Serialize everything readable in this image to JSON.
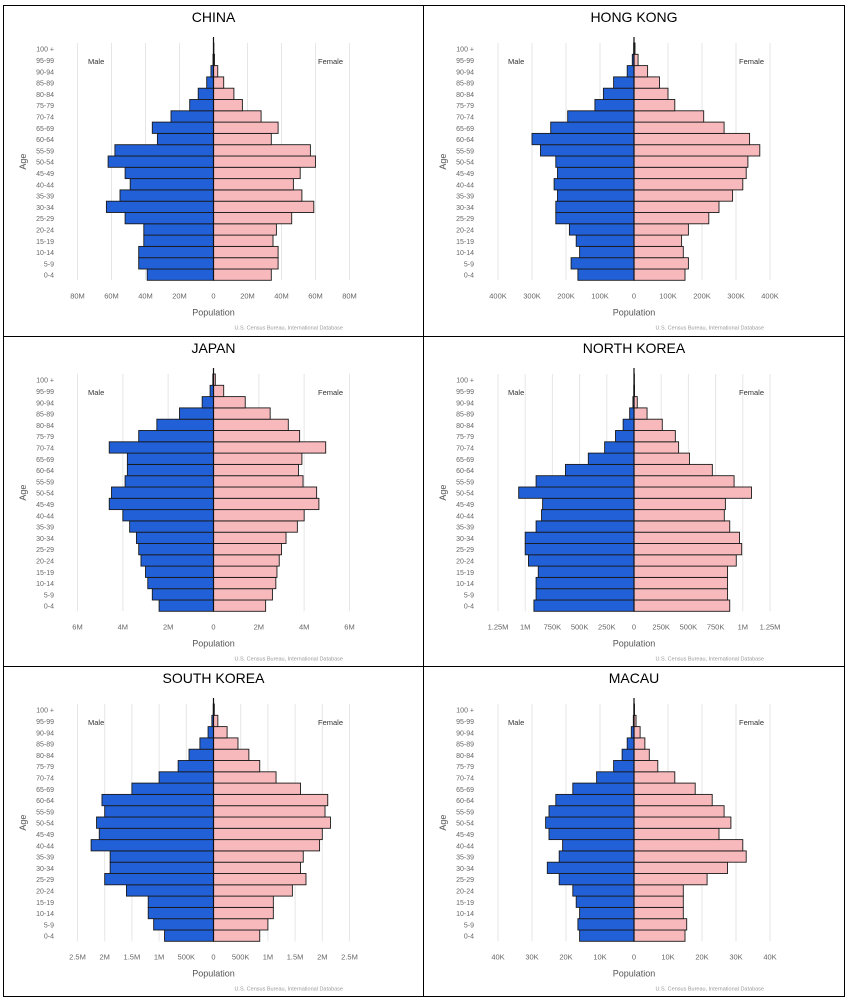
{
  "figure": {
    "sex_labels": {
      "male": "Male",
      "female": "Female"
    },
    "y_axis_label": "Age",
    "x_axis_label": "Population",
    "source": "U.S. Census Bureau, International Database",
    "age_groups": [
      "0-4",
      "5-9",
      "10-14",
      "15-19",
      "20-24",
      "25-29",
      "30-34",
      "35-39",
      "40-44",
      "45-49",
      "50-54",
      "55-59",
      "60-64",
      "65-69",
      "70-74",
      "75-79",
      "80-84",
      "85-89",
      "90-94",
      "95-99",
      "100 +"
    ]
  },
  "colors": {
    "male": "#2160d6",
    "female": "#f7b9bc",
    "outline": "#1a1a1a",
    "grid": "#e6e6e6"
  },
  "chart_data": [
    {
      "type": "bar",
      "title": "CHINA",
      "xlim": [
        -80,
        80
      ],
      "xticks": [
        -80,
        -60,
        -40,
        -20,
        0,
        20,
        40,
        60,
        80
      ],
      "xtick_labels": [
        "80M",
        "60M",
        "40M",
        "20M",
        "0",
        "20M",
        "40M",
        "60M",
        "80M"
      ],
      "categories": [
        "0-4",
        "5-9",
        "10-14",
        "15-19",
        "20-24",
        "25-29",
        "30-34",
        "35-39",
        "40-44",
        "45-49",
        "50-54",
        "55-59",
        "60-64",
        "65-69",
        "70-74",
        "75-79",
        "80-84",
        "85-89",
        "90-94",
        "95-99",
        "100 +"
      ],
      "series": [
        {
          "name": "Male",
          "values": [
            39,
            44,
            44,
            41,
            41,
            52,
            63,
            55,
            49,
            52,
            62,
            58,
            33,
            36,
            25,
            14,
            9,
            4,
            1.5,
            0.3,
            0.05
          ]
        },
        {
          "name": "Female",
          "values": [
            34,
            38,
            38,
            35,
            37,
            46,
            59,
            52,
            47,
            51,
            60,
            57,
            34,
            38,
            28,
            17,
            12,
            6,
            2.5,
            0.6,
            0.1
          ]
        }
      ]
    },
    {
      "type": "bar",
      "title": "HONG KONG",
      "xlim": [
        -400,
        400
      ],
      "xticks": [
        -400,
        -300,
        -200,
        -100,
        0,
        100,
        200,
        300,
        400
      ],
      "xtick_labels": [
        "400K",
        "300K",
        "200K",
        "100K",
        "0",
        "100K",
        "200K",
        "300K",
        "400K"
      ],
      "categories": [
        "0-4",
        "5-9",
        "10-14",
        "15-19",
        "20-24",
        "25-29",
        "30-34",
        "35-39",
        "40-44",
        "45-49",
        "50-54",
        "55-59",
        "60-64",
        "65-69",
        "70-74",
        "75-79",
        "80-84",
        "85-89",
        "90-94",
        "95-99",
        "100 +"
      ],
      "series": [
        {
          "name": "Male",
          "values": [
            165,
            185,
            160,
            170,
            190,
            230,
            230,
            225,
            235,
            225,
            230,
            275,
            300,
            245,
            195,
            115,
            90,
            60,
            20,
            5,
            1
          ]
        },
        {
          "name": "Female",
          "values": [
            150,
            160,
            145,
            140,
            160,
            220,
            250,
            290,
            320,
            330,
            335,
            370,
            340,
            265,
            205,
            120,
            100,
            75,
            40,
            12,
            3
          ]
        }
      ]
    },
    {
      "type": "bar",
      "title": "JAPAN",
      "xlim": [
        -6,
        6
      ],
      "xticks": [
        -6,
        -4,
        -2,
        0,
        2,
        4,
        6
      ],
      "xtick_labels": [
        "6M",
        "4M",
        "2M",
        "0",
        "2M",
        "4M",
        "6M"
      ],
      "categories": [
        "0-4",
        "5-9",
        "10-14",
        "15-19",
        "20-24",
        "25-29",
        "30-34",
        "35-39",
        "40-44",
        "45-49",
        "50-54",
        "55-59",
        "60-64",
        "65-69",
        "70-74",
        "75-79",
        "80-84",
        "85-89",
        "90-94",
        "95-99",
        "100 +"
      ],
      "series": [
        {
          "name": "Male",
          "values": [
            2.4,
            2.7,
            2.9,
            3.0,
            3.2,
            3.3,
            3.4,
            3.7,
            4.0,
            4.6,
            4.5,
            3.9,
            3.8,
            3.8,
            4.6,
            3.3,
            2.5,
            1.5,
            0.5,
            0.15,
            0.03
          ]
        },
        {
          "name": "Female",
          "values": [
            2.3,
            2.6,
            2.75,
            2.8,
            2.9,
            3.0,
            3.2,
            3.7,
            4.0,
            4.65,
            4.55,
            3.95,
            3.75,
            3.9,
            4.95,
            3.8,
            3.3,
            2.5,
            1.4,
            0.45,
            0.08
          ]
        }
      ]
    },
    {
      "type": "bar",
      "title": "NORTH KOREA",
      "xlim": [
        -1.25,
        1.25
      ],
      "xticks": [
        -1.25,
        -1.0,
        -0.75,
        -0.5,
        -0.25,
        0,
        0.25,
        0.5,
        0.75,
        1.0,
        1.25
      ],
      "xtick_labels": [
        "1.25M",
        "1M",
        "750K",
        "500K",
        "250K",
        "0",
        "250K",
        "500K",
        "750K",
        "1M",
        "1.25M"
      ],
      "categories": [
        "0-4",
        "5-9",
        "10-14",
        "15-19",
        "20-24",
        "25-29",
        "30-34",
        "35-39",
        "40-44",
        "45-49",
        "50-54",
        "55-59",
        "60-64",
        "65-69",
        "70-74",
        "75-79",
        "80-84",
        "85-89",
        "90-94",
        "95-99",
        "100 +"
      ],
      "series": [
        {
          "name": "Male",
          "values": [
            0.92,
            0.9,
            0.9,
            0.88,
            0.97,
            1.0,
            1.0,
            0.9,
            0.85,
            0.84,
            1.06,
            0.9,
            0.63,
            0.42,
            0.27,
            0.17,
            0.1,
            0.04,
            0.01,
            0.002,
            0.0005
          ]
        },
        {
          "name": "Female",
          "values": [
            0.88,
            0.86,
            0.86,
            0.86,
            0.94,
            0.99,
            0.97,
            0.88,
            0.83,
            0.84,
            1.08,
            0.92,
            0.72,
            0.51,
            0.41,
            0.38,
            0.26,
            0.12,
            0.03,
            0.005,
            0.001
          ]
        }
      ]
    },
    {
      "type": "bar",
      "title": "SOUTH KOREA",
      "xlim": [
        -2.5,
        2.5
      ],
      "xticks": [
        -2.5,
        -2.0,
        -1.5,
        -1.0,
        -0.5,
        0,
        0.5,
        1.0,
        1.5,
        2.0,
        2.5
      ],
      "xtick_labels": [
        "2.5M",
        "2M",
        "1.5M",
        "1M",
        "500K",
        "0",
        "500K",
        "1M",
        "1.5M",
        "2M",
        "2.5M"
      ],
      "categories": [
        "0-4",
        "5-9",
        "10-14",
        "15-19",
        "20-24",
        "25-29",
        "30-34",
        "35-39",
        "40-44",
        "45-49",
        "50-54",
        "55-59",
        "60-64",
        "65-69",
        "70-74",
        "75-79",
        "80-84",
        "85-89",
        "90-94",
        "95-99",
        "100 +"
      ],
      "series": [
        {
          "name": "Male",
          "values": [
            0.9,
            1.1,
            1.2,
            1.2,
            1.6,
            2.0,
            1.9,
            1.9,
            2.25,
            2.1,
            2.15,
            2.0,
            2.05,
            1.5,
            1.0,
            0.65,
            0.45,
            0.25,
            0.1,
            0.03,
            0.005
          ]
        },
        {
          "name": "Female",
          "values": [
            0.85,
            1.0,
            1.1,
            1.1,
            1.45,
            1.7,
            1.6,
            1.65,
            1.95,
            2.0,
            2.15,
            2.05,
            2.1,
            1.6,
            1.15,
            0.85,
            0.65,
            0.45,
            0.25,
            0.08,
            0.015
          ]
        }
      ]
    },
    {
      "type": "bar",
      "title": "MACAU",
      "xlim": [
        -40,
        40
      ],
      "xticks": [
        -40,
        -30,
        -20,
        -10,
        0,
        10,
        20,
        30,
        40
      ],
      "xtick_labels": [
        "40K",
        "30K",
        "20K",
        "10K",
        "0",
        "10K",
        "20K",
        "30K",
        "40K"
      ],
      "categories": [
        "0-4",
        "5-9",
        "10-14",
        "15-19",
        "20-24",
        "25-29",
        "30-34",
        "35-39",
        "40-44",
        "45-49",
        "50-54",
        "55-59",
        "60-64",
        "65-69",
        "70-74",
        "75-79",
        "80-84",
        "85-89",
        "90-94",
        "95-99",
        "100 +"
      ],
      "series": [
        {
          "name": "Male",
          "values": [
            16,
            16.5,
            16,
            17,
            18,
            22,
            25.5,
            22,
            21,
            25,
            26,
            25,
            23,
            18,
            11,
            6,
            3.5,
            2,
            0.8,
            0.2,
            0.05
          ]
        },
        {
          "name": "Female",
          "values": [
            15,
            15.5,
            14.5,
            14.5,
            14.5,
            21.5,
            27.5,
            33,
            32,
            25,
            28.5,
            26.5,
            23,
            18,
            12,
            7,
            4.5,
            3.2,
            1.8,
            0.6,
            0.15
          ]
        }
      ]
    }
  ]
}
